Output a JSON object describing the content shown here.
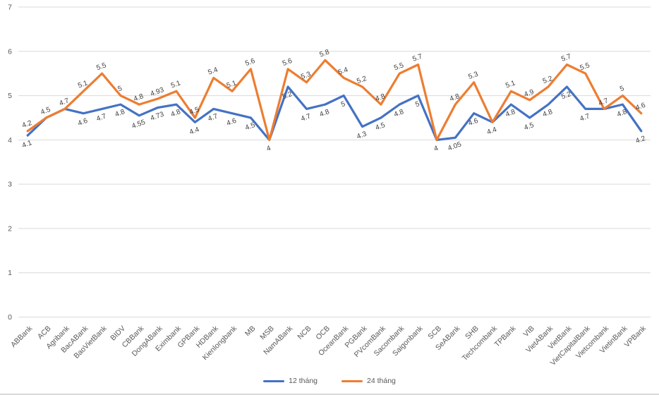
{
  "chart_data": {
    "type": "line",
    "title": "",
    "xlabel": "",
    "ylabel": "",
    "categories": [
      "ABBank",
      "ACB",
      "Agribank",
      "BacABank",
      "BaoVietBank",
      "BIDV",
      "CBBank",
      "DongABank",
      "Eximbank",
      "GPBank",
      "HDBank",
      "Kienlongbank",
      "MB",
      "MSB",
      "NamABank",
      "NCB",
      "OCB",
      "OceanBank",
      "PGBank",
      "PVcomBank",
      "Sacombank",
      "Saigonbank",
      "SCB",
      "SeABank",
      "SHB",
      "Techcombank",
      "TPBank",
      "VIB",
      "VietABank",
      "VietBank",
      "VietCapitalBank",
      "Vietcombank",
      "VietinBank",
      "VPBank"
    ],
    "series": [
      {
        "name": "12 tháng",
        "color": "#4472C4",
        "values": [
          4.1,
          4.5,
          4.7,
          4.6,
          4.7,
          4.8,
          4.55,
          4.73,
          4.8,
          4.4,
          4.7,
          4.6,
          4.5,
          4,
          5.2,
          4.7,
          4.8,
          5,
          4.3,
          4.5,
          4.8,
          5,
          4,
          4.05,
          4.6,
          4.4,
          4.8,
          4.5,
          4.8,
          5.2,
          4.7,
          4.7,
          4.8,
          4.2
        ]
      },
      {
        "name": "24 tháng",
        "color": "#ED7D31",
        "values": [
          4.2,
          4.5,
          4.7,
          5.1,
          5.5,
          5,
          4.8,
          4.93,
          5.1,
          4.5,
          5.4,
          5.1,
          5.6,
          4,
          5.6,
          5.3,
          5.8,
          5.4,
          5.2,
          4.8,
          5.5,
          5.7,
          4,
          4.8,
          5.3,
          4.4,
          5.1,
          4.9,
          5.2,
          5.7,
          5.5,
          4.7,
          5,
          4.6
        ]
      }
    ],
    "ylim": [
      0,
      7
    ],
    "yticks": [
      0,
      1,
      2,
      3,
      4,
      5,
      6,
      7
    ],
    "grid": "horizontal",
    "legend_position": "bottom",
    "data_labels": true
  },
  "colors": {
    "gridline": "#D9D9D9",
    "axis_text": "#595959",
    "data_label_text": "#404040",
    "background": "#FFFFFF"
  }
}
